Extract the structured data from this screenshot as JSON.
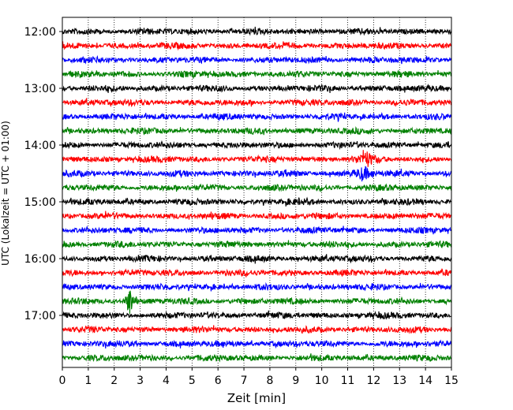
{
  "chart_data": {
    "type": "line",
    "xlabel": "Zeit  [min]",
    "ylabel": "UTC (Lokalzeit = UTC + 01:00)",
    "xlim": [
      0,
      15
    ],
    "x_ticks": [
      "0",
      "1",
      "2",
      "3",
      "4",
      "5",
      "6",
      "7",
      "8",
      "9",
      "10",
      "11",
      "12",
      "13",
      "14",
      "15"
    ],
    "y_ticks": [
      "12:00",
      "13:00",
      "14:00",
      "15:00",
      "16:00",
      "17:00"
    ],
    "trace_start_time": "12:00",
    "trace_interval_min": 15,
    "trace_count": 24,
    "trace_colors": [
      "#000000",
      "#ff0000",
      "#0000ff",
      "#008000"
    ],
    "grid": "vertical dotted at each minute",
    "events": [
      {
        "trace": 19,
        "time_min": 2.6,
        "amplitude": "large"
      },
      {
        "trace": 9,
        "time_min": 11.7,
        "amplitude": "medium"
      },
      {
        "trace": 10,
        "time_min": 11.6,
        "amplitude": "medium"
      }
    ]
  }
}
